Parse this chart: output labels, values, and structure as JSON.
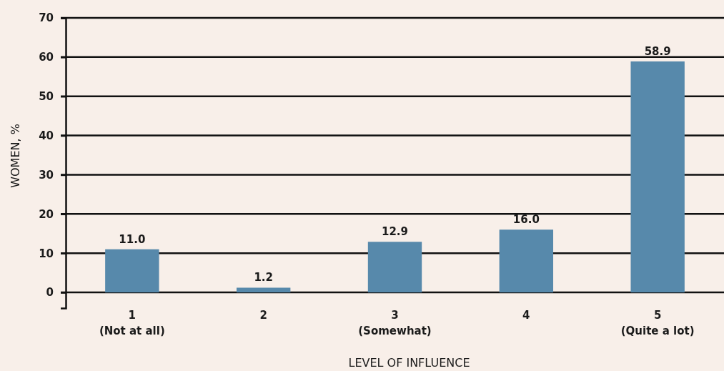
{
  "chart_data": {
    "type": "bar",
    "xlabel": "LEVEL OF INFLUENCE",
    "ylabel": "WOMEN, %",
    "categories": [
      "1\n(Not at all)",
      "2",
      "3\n(Somewhat)",
      "4",
      "5\n(Quite a lot)"
    ],
    "values": [
      11.0,
      1.2,
      12.9,
      16.0,
      58.9
    ],
    "value_labels": [
      "11.0",
      "1.2",
      "12.9",
      "16.0",
      "58.9"
    ],
    "color": "#5789ab",
    "ylim": [
      -4,
      70
    ],
    "yticks": [
      0,
      10,
      20,
      30,
      40,
      50,
      60,
      70
    ],
    "grid": "y"
  }
}
